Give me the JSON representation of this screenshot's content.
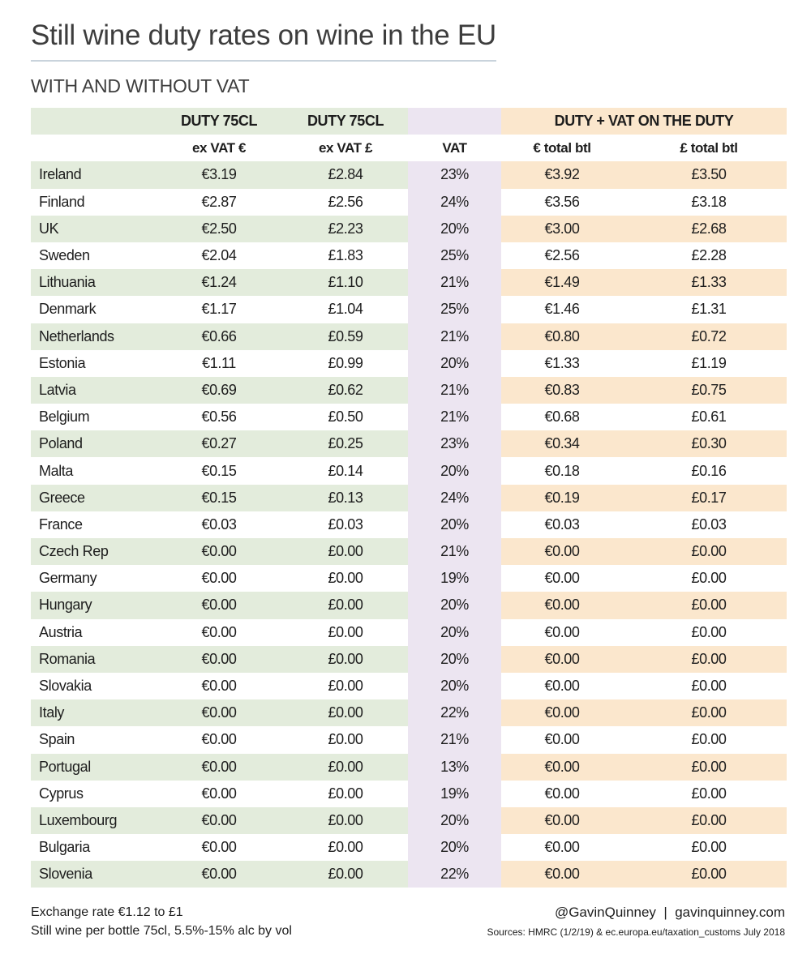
{
  "title": "Still wine duty rates on wine in the EU",
  "subtitle": "WITH AND WITHOUT VAT",
  "colors": {
    "green": "#e3ecdc",
    "lavender": "#ece5f1",
    "peach": "#fbe7cd",
    "rule": "#c9d3dc"
  },
  "header": {
    "duty_eur": "DUTY 75CL",
    "duty_gbp": "DUTY 75CL",
    "duty_plus_vat": "DUTY + VAT ON THE DUTY",
    "sub_ex_vat_eur": "ex VAT €",
    "sub_ex_vat_gbp": "ex VAT £",
    "sub_vat": "VAT",
    "sub_total_eur": "€ total btl",
    "sub_total_gbp": "£ total btl"
  },
  "rows": [
    {
      "country": "Ireland",
      "eur": "€3.19",
      "gbp": "£2.84",
      "vat": "23%",
      "tot_eur": "€3.92",
      "tot_gbp": "£3.50"
    },
    {
      "country": "Finland",
      "eur": "€2.87",
      "gbp": "£2.56",
      "vat": "24%",
      "tot_eur": "€3.56",
      "tot_gbp": "£3.18"
    },
    {
      "country": "UK",
      "eur": "€2.50",
      "gbp": "£2.23",
      "vat": "20%",
      "tot_eur": "€3.00",
      "tot_gbp": "£2.68"
    },
    {
      "country": "Sweden",
      "eur": "€2.04",
      "gbp": "£1.83",
      "vat": "25%",
      "tot_eur": "€2.56",
      "tot_gbp": "£2.28"
    },
    {
      "country": "Lithuania",
      "eur": "€1.24",
      "gbp": "£1.10",
      "vat": "21%",
      "tot_eur": "€1.49",
      "tot_gbp": "£1.33"
    },
    {
      "country": "Denmark",
      "eur": "€1.17",
      "gbp": "£1.04",
      "vat": "25%",
      "tot_eur": "€1.46",
      "tot_gbp": "£1.31"
    },
    {
      "country": "Netherlands",
      "eur": "€0.66",
      "gbp": "£0.59",
      "vat": "21%",
      "tot_eur": "€0.80",
      "tot_gbp": "£0.72"
    },
    {
      "country": "Estonia",
      "eur": "€1.11",
      "gbp": "£0.99",
      "vat": "20%",
      "tot_eur": "€1.33",
      "tot_gbp": "£1.19"
    },
    {
      "country": "Latvia",
      "eur": "€0.69",
      "gbp": "£0.62",
      "vat": "21%",
      "tot_eur": "€0.83",
      "tot_gbp": "£0.75"
    },
    {
      "country": "Belgium",
      "eur": "€0.56",
      "gbp": "£0.50",
      "vat": "21%",
      "tot_eur": "€0.68",
      "tot_gbp": "£0.61"
    },
    {
      "country": "Poland",
      "eur": "€0.27",
      "gbp": "£0.25",
      "vat": "23%",
      "tot_eur": "€0.34",
      "tot_gbp": "£0.30"
    },
    {
      "country": "Malta",
      "eur": "€0.15",
      "gbp": "£0.14",
      "vat": "20%",
      "tot_eur": "€0.18",
      "tot_gbp": "£0.16"
    },
    {
      "country": "Greece",
      "eur": "€0.15",
      "gbp": "£0.13",
      "vat": "24%",
      "tot_eur": "€0.19",
      "tot_gbp": "£0.17"
    },
    {
      "country": "France",
      "eur": "€0.03",
      "gbp": "£0.03",
      "vat": "20%",
      "tot_eur": "€0.03",
      "tot_gbp": "£0.03"
    },
    {
      "country": "Czech Rep",
      "eur": "€0.00",
      "gbp": "£0.00",
      "vat": "21%",
      "tot_eur": "€0.00",
      "tot_gbp": "£0.00"
    },
    {
      "country": "Germany",
      "eur": "€0.00",
      "gbp": "£0.00",
      "vat": "19%",
      "tot_eur": "€0.00",
      "tot_gbp": "£0.00"
    },
    {
      "country": "Hungary",
      "eur": "€0.00",
      "gbp": "£0.00",
      "vat": "20%",
      "tot_eur": "€0.00",
      "tot_gbp": "£0.00"
    },
    {
      "country": "Austria",
      "eur": "€0.00",
      "gbp": "£0.00",
      "vat": "20%",
      "tot_eur": "€0.00",
      "tot_gbp": "£0.00"
    },
    {
      "country": "Romania",
      "eur": "€0.00",
      "gbp": "£0.00",
      "vat": "20%",
      "tot_eur": "€0.00",
      "tot_gbp": "£0.00"
    },
    {
      "country": "Slovakia",
      "eur": "€0.00",
      "gbp": "£0.00",
      "vat": "20%",
      "tot_eur": "€0.00",
      "tot_gbp": "£0.00"
    },
    {
      "country": "Italy",
      "eur": "€0.00",
      "gbp": "£0.00",
      "vat": "22%",
      "tot_eur": "€0.00",
      "tot_gbp": "£0.00"
    },
    {
      "country": "Spain",
      "eur": "€0.00",
      "gbp": "£0.00",
      "vat": "21%",
      "tot_eur": "€0.00",
      "tot_gbp": "£0.00"
    },
    {
      "country": "Portugal",
      "eur": "€0.00",
      "gbp": "£0.00",
      "vat": "13%",
      "tot_eur": "€0.00",
      "tot_gbp": "£0.00"
    },
    {
      "country": "Cyprus",
      "eur": "€0.00",
      "gbp": "£0.00",
      "vat": "19%",
      "tot_eur": "€0.00",
      "tot_gbp": "£0.00"
    },
    {
      "country": "Luxembourg",
      "eur": "€0.00",
      "gbp": "£0.00",
      "vat": "20%",
      "tot_eur": "€0.00",
      "tot_gbp": "£0.00"
    },
    {
      "country": "Bulgaria",
      "eur": "€0.00",
      "gbp": "£0.00",
      "vat": "20%",
      "tot_eur": "€0.00",
      "tot_gbp": "£0.00"
    },
    {
      "country": "Slovenia",
      "eur": "€0.00",
      "gbp": "£0.00",
      "vat": "22%",
      "tot_eur": "€0.00",
      "tot_gbp": "£0.00"
    }
  ],
  "footer": {
    "exchange_rate": "Exchange rate €1.12 to £1",
    "note": "Still wine per bottle 75cl, 5.5%-15% alc by vol",
    "credit": "@GavinQuinney  |  gavinquinney.com",
    "sources": "Sources: HMRC (1/2/19) & ec.europa.eu/taxation_customs July 2018"
  }
}
